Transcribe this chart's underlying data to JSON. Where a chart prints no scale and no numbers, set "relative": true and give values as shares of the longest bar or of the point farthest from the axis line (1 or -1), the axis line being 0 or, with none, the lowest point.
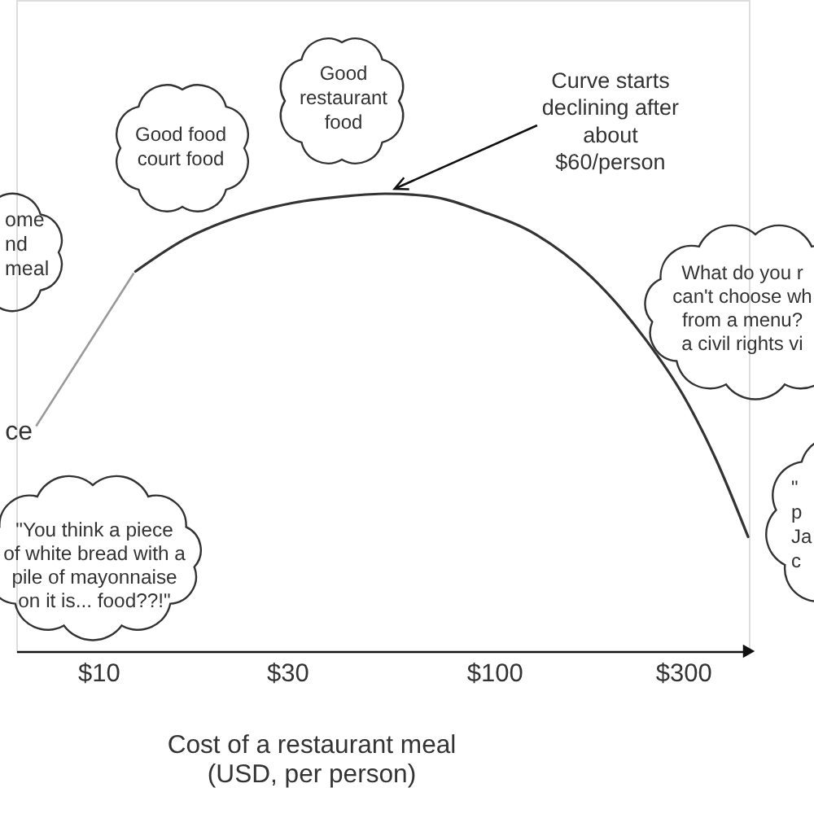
{
  "chart_data": {
    "type": "line",
    "relative": true,
    "xlabel": "Cost of a restaurant meal\n(USD, per person)",
    "log": "x",
    "x": [
      12.4,
      16.5,
      22.7,
      31,
      42.5,
      53,
      68,
      94,
      128,
      175,
      242,
      300,
      363,
      438
    ],
    "values": [
      0.83,
      0.9,
      0.95,
      0.98,
      0.995,
      1.0,
      0.995,
      0.96,
      0.91,
      0.82,
      0.68,
      0.56,
      0.42,
      0.25
    ],
    "color": "#333333",
    "xlim": [
      6.2,
      440
    ],
    "xticks": [
      {
        "value": 10,
        "label": "$10"
      },
      {
        "value": 30,
        "label": "$30"
      },
      {
        "value": 100,
        "label": "$100"
      },
      {
        "value": 300,
        "label": "$300"
      }
    ],
    "grid": false,
    "annotations": [
      "Good\nrestaurant\nfood",
      {
        "text": "Curve starts\ndeclining after\nabout\n$60/person",
        "x": 56,
        "y": 1.0
      },
      "Good food\ncourt food",
      "ome\nnd\nmeal",
      "What do you r\ncan't choose wh\nfrom a menu?\na civil rights vi",
      {
        "text": "ce",
        "x": 12.4,
        "y": 0.83
      },
      "\"\np\nJa\nc",
      "\"You think a piece\nof white bread with a\npile of mayonnaise\non it is... food??!\""
    ]
  }
}
